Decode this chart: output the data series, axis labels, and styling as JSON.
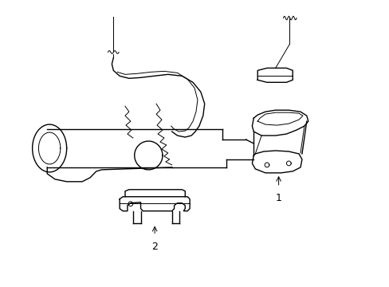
{
  "background_color": "#ffffff",
  "line_color": "#000000",
  "lw": 1.0,
  "lw_thin": 0.7,
  "fig_width": 4.89,
  "fig_height": 3.6,
  "dpi": 100,
  "label1": "1",
  "label2": "2"
}
